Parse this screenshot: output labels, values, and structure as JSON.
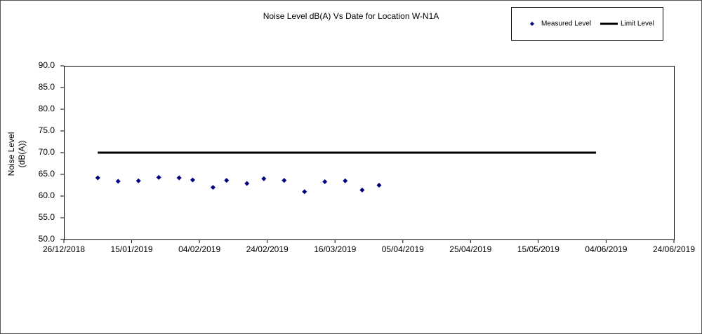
{
  "chart_data": {
    "type": "scatter",
    "title": "Noise Level dB(A) Vs Date for Location W-N1A",
    "ylabel": [
      "Noise Level",
      "(dB(A))"
    ],
    "xlim": [
      "26/12/2018",
      "24/06/2019"
    ],
    "xticks": [
      "26/12/2018",
      "15/01/2019",
      "04/02/2019",
      "24/02/2019",
      "16/03/2019",
      "05/04/2019",
      "25/04/2019",
      "15/05/2019",
      "04/06/2019",
      "24/06/2019"
    ],
    "ylim": [
      50,
      90
    ],
    "yticks": [
      {
        "value": 50,
        "label": "50.0"
      },
      {
        "value": 55,
        "label": "55.0"
      },
      {
        "value": 60,
        "label": "60.0"
      },
      {
        "value": 65,
        "label": "65.0"
      },
      {
        "value": 70,
        "label": "70.0"
      },
      {
        "value": 75,
        "label": "75.0"
      },
      {
        "value": 80,
        "label": "80.0"
      },
      {
        "value": 85,
        "label": "85.0"
      },
      {
        "value": 90,
        "label": "90.0"
      }
    ],
    "grid": false,
    "legend": "top-right",
    "series": [
      {
        "name": "Measured Level",
        "mode": "markers",
        "color": "#000080",
        "x": [
          "05/01/2019",
          "11/01/2019",
          "17/01/2019",
          "23/01/2019",
          "29/01/2019",
          "02/02/2019",
          "08/02/2019",
          "12/02/2019",
          "18/02/2019",
          "23/02/2019",
          "01/03/2019",
          "07/03/2019",
          "13/03/2019",
          "19/03/2019",
          "24/03/2019",
          "29/03/2019"
        ],
        "values": [
          64.2,
          63.4,
          63.5,
          64.3,
          64.2,
          63.7,
          62.0,
          63.6,
          62.9,
          64.0,
          63.6,
          61.0,
          63.3,
          63.5,
          61.4,
          62.5
        ]
      },
      {
        "name": "Limit Level",
        "mode": "lines",
        "color": "#000000",
        "x": [
          "05/01/2019",
          "01/06/2019"
        ],
        "values": [
          70,
          70
        ]
      }
    ]
  }
}
